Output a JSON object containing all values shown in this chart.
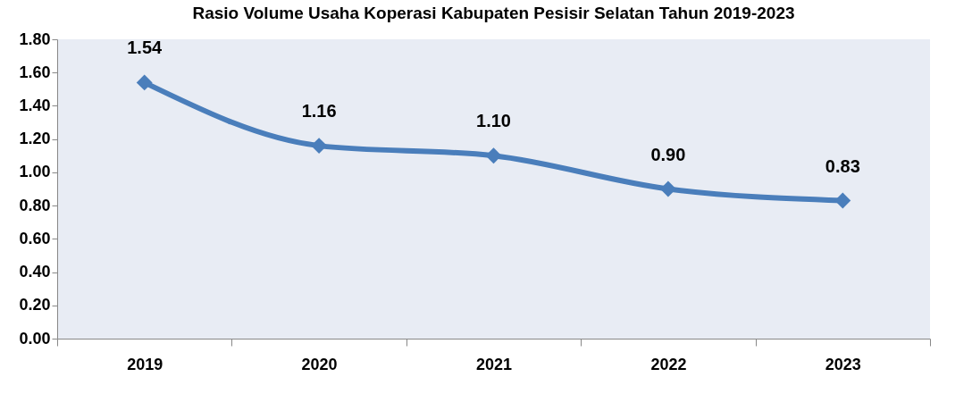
{
  "chart_data": {
    "type": "line",
    "title": "Rasio Volume Usaha Koperasi Kabupaten Pesisir Selatan Tahun 2019-2023",
    "categories": [
      "2019",
      "2020",
      "2021",
      "2022",
      "2023"
    ],
    "values": [
      1.54,
      1.16,
      1.1,
      0.9,
      0.83
    ],
    "value_labels": [
      "1.54",
      "1.16",
      "1.10",
      "0.90",
      "0.83"
    ],
    "color": "#4a7ebb",
    "marker": "diamond",
    "line_style": "solid",
    "grid": false,
    "ylim": [
      0,
      1.8
    ],
    "yticks": [
      {
        "value": 0,
        "label": "0.00"
      },
      {
        "value": 0.2,
        "label": "0.20"
      },
      {
        "value": 0.4,
        "label": "0.40"
      },
      {
        "value": 0.6,
        "label": "0.60"
      },
      {
        "value": 0.8,
        "label": "0.80"
      },
      {
        "value": 1.0,
        "label": "1.00"
      },
      {
        "value": 1.2,
        "label": "1.20"
      },
      {
        "value": 1.4,
        "label": "1.40"
      },
      {
        "value": 1.6,
        "label": "1.60"
      },
      {
        "value": 1.8,
        "label": "1.80"
      }
    ]
  }
}
